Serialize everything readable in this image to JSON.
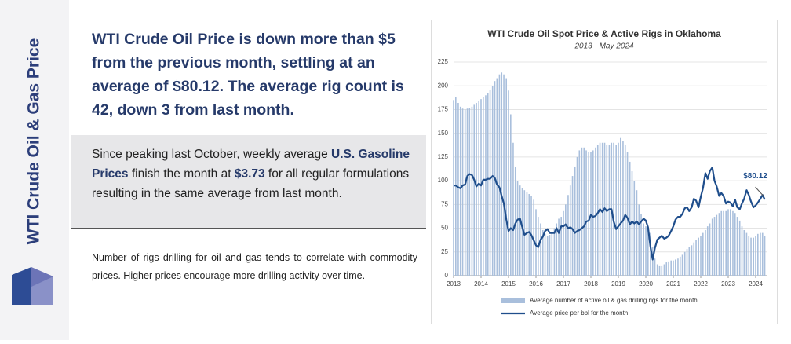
{
  "sidebar_title": "WTI Crude Oil & Gas Price",
  "headline": "WTI Crude Oil Price is down more than $5 from the previous month, settling at an average of $80.12. The average rig count is 42, down 3 from last month.",
  "callout": [
    {
      "text": "Since peaking last October, weekly average "
    },
    {
      "text": "U.S. Gasoline Prices",
      "bold": true
    },
    {
      "text": " finish the month at "
    },
    {
      "text": "$3.73",
      "bold": true
    },
    {
      "text": " for all regular formulations resulting in the same average from last month."
    }
  ],
  "note": "Number of rigs drilling for oil and gas tends to correlate with commodity prices. Higher prices encourage more drilling activity over time.",
  "chart_data": {
    "type": "combo",
    "title": "WTI Crude Oil Spot Price & Active Rigs in Oklahoma",
    "subtitle": "2013 - May 2024",
    "x": [
      2013,
      2013.08,
      2013.17,
      2013.25,
      2013.33,
      2013.42,
      2013.5,
      2013.58,
      2013.67,
      2013.75,
      2013.83,
      2013.92,
      2014,
      2014.08,
      2014.17,
      2014.25,
      2014.33,
      2014.42,
      2014.5,
      2014.58,
      2014.67,
      2014.75,
      2014.83,
      2014.92,
      2015,
      2015.08,
      2015.17,
      2015.25,
      2015.33,
      2015.42,
      2015.5,
      2015.58,
      2015.67,
      2015.75,
      2015.83,
      2015.92,
      2016,
      2016.08,
      2016.17,
      2016.25,
      2016.33,
      2016.42,
      2016.5,
      2016.58,
      2016.67,
      2016.75,
      2016.83,
      2016.92,
      2017,
      2017.08,
      2017.17,
      2017.25,
      2017.33,
      2017.42,
      2017.5,
      2017.58,
      2017.67,
      2017.75,
      2017.83,
      2017.92,
      2018,
      2018.08,
      2018.17,
      2018.25,
      2018.33,
      2018.42,
      2018.5,
      2018.58,
      2018.67,
      2018.75,
      2018.83,
      2018.92,
      2019,
      2019.08,
      2019.17,
      2019.25,
      2019.33,
      2019.42,
      2019.5,
      2019.58,
      2019.67,
      2019.75,
      2019.83,
      2019.92,
      2020,
      2020.08,
      2020.17,
      2020.25,
      2020.33,
      2020.42,
      2020.5,
      2020.58,
      2020.67,
      2020.75,
      2020.83,
      2020.92,
      2021,
      2021.08,
      2021.17,
      2021.25,
      2021.33,
      2021.42,
      2021.5,
      2021.58,
      2021.67,
      2021.75,
      2021.83,
      2021.92,
      2022,
      2022.08,
      2022.17,
      2022.25,
      2022.33,
      2022.42,
      2022.5,
      2022.58,
      2022.67,
      2022.75,
      2022.83,
      2022.92,
      2023,
      2023.08,
      2023.17,
      2023.25,
      2023.33,
      2023.42,
      2023.5,
      2023.58,
      2023.67,
      2023.75,
      2023.83,
      2023.92,
      2024,
      2024.08,
      2024.17,
      2024.25,
      2024.33
    ],
    "series": [
      {
        "name": "Average number of active oil & gas drilling rigs for the month",
        "type": "bar",
        "color": "#a9bfdc",
        "values": [
          185,
          188,
          182,
          178,
          176,
          175,
          176,
          177,
          178,
          180,
          182,
          184,
          186,
          188,
          190,
          192,
          196,
          200,
          205,
          208,
          212,
          214,
          212,
          208,
          195,
          170,
          140,
          115,
          100,
          95,
          92,
          90,
          88,
          86,
          84,
          80,
          70,
          62,
          55,
          48,
          44,
          42,
          43,
          45,
          50,
          55,
          60,
          62,
          68,
          75,
          85,
          95,
          105,
          115,
          125,
          132,
          135,
          135,
          132,
          130,
          130,
          132,
          135,
          138,
          140,
          140,
          140,
          138,
          138,
          140,
          140,
          138,
          140,
          145,
          142,
          138,
          130,
          120,
          110,
          100,
          90,
          75,
          65,
          55,
          52,
          50,
          45,
          30,
          18,
          12,
          10,
          10,
          12,
          14,
          15,
          16,
          16,
          17,
          18,
          20,
          22,
          25,
          28,
          30,
          32,
          35,
          38,
          40,
          42,
          45,
          48,
          52,
          55,
          60,
          62,
          64,
          66,
          68,
          68,
          68,
          70,
          70,
          68,
          66,
          62,
          58,
          52,
          48,
          45,
          42,
          40,
          40,
          42,
          44,
          45,
          45,
          42
        ]
      },
      {
        "name": "Average price per bbl for the month",
        "type": "line",
        "color": "#1f4e8c",
        "values": [
          95,
          95,
          93,
          92,
          95,
          96,
          105,
          107,
          106,
          101,
          94,
          97,
          95,
          101,
          101,
          102,
          102,
          105,
          103,
          96,
          93,
          84,
          76,
          59,
          47,
          50,
          48,
          55,
          59,
          60,
          51,
          43,
          45,
          46,
          43,
          37,
          32,
          30,
          38,
          41,
          47,
          49,
          45,
          45,
          45,
          50,
          45,
          52,
          52,
          54,
          50,
          51,
          49,
          45,
          47,
          48,
          50,
          52,
          57,
          58,
          64,
          62,
          63,
          66,
          70,
          67,
          71,
          68,
          70,
          70,
          57,
          49,
          52,
          55,
          58,
          64,
          61,
          54,
          57,
          55,
          57,
          54,
          57,
          60,
          58,
          51,
          30,
          17,
          29,
          38,
          40,
          42,
          39,
          40,
          42,
          47,
          52,
          59,
          62,
          62,
          65,
          71,
          72,
          68,
          72,
          81,
          79,
          72,
          83,
          92,
          108,
          102,
          110,
          114,
          100,
          94,
          84,
          87,
          84,
          76,
          78,
          77,
          73,
          80,
          72,
          70,
          76,
          81,
          90,
          85,
          78,
          72,
          74,
          77,
          81,
          85,
          80.12
        ]
      }
    ],
    "annotation": "$80.12",
    "xlim": [
      2013,
      2024.4
    ],
    "xticks": [
      2013,
      2014,
      2015,
      2016,
      2017,
      2018,
      2019,
      2020,
      2021,
      2022,
      2023,
      2024
    ],
    "ylim": [
      0,
      225
    ],
    "yticks": [
      0,
      25,
      50,
      75,
      100,
      125,
      150,
      175,
      200,
      225
    ],
    "grid": true
  }
}
